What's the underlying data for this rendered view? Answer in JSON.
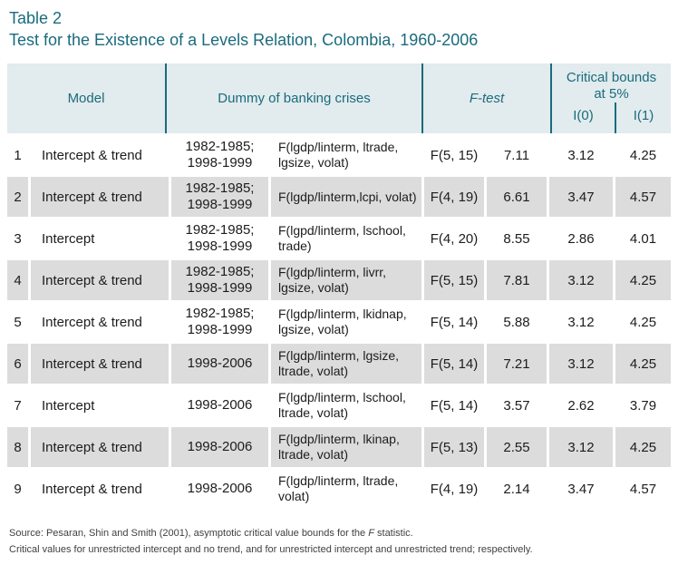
{
  "title": {
    "label": "Table 2",
    "subtitle": "Test for the Existence of a Levels Relation, Colombia, 1960-2006"
  },
  "table": {
    "headers": {
      "model": "Model",
      "dummy": "Dummy of banking crises",
      "ftest": "F-test",
      "critical_bounds": "Critical bounds at 5%",
      "i0": "I(0)",
      "i1": "I(1)"
    },
    "rows": [
      {
        "num": "1",
        "model": "Intercept & trend",
        "period": "1982-1985; 1998-1999",
        "formula": "F(lgdp/linterm, ltrade, lgsize, volat)",
        "fdf": "F(5, 15)",
        "fval": "7.11",
        "i0": "3.12",
        "i1": "4.25"
      },
      {
        "num": "2",
        "model": "Intercept & trend",
        "period": "1982-1985; 1998-1999",
        "formula": "F(lgdp/linterm,lcpi, volat)",
        "fdf": "F(4, 19)",
        "fval": "6.61",
        "i0": "3.47",
        "i1": "4.57"
      },
      {
        "num": "3",
        "model": "Intercept",
        "period": "1982-1985; 1998-1999",
        "formula": "F(lgpd/linterm, lschool, trade)",
        "fdf": "F(4, 20)",
        "fval": "8.55",
        "i0": "2.86",
        "i1": "4.01"
      },
      {
        "num": "4",
        "model": "Intercept & trend",
        "period": "1982-1985; 1998-1999",
        "formula": "F(lgdp/linterm, livrr, lgsize, volat)",
        "fdf": "F(5, 15)",
        "fval": "7.81",
        "i0": "3.12",
        "i1": "4.25"
      },
      {
        "num": "5",
        "model": "Intercept & trend",
        "period": "1982-1985; 1998-1999",
        "formula": "F(lgdp/linterm, lkidnap, lgsize, volat)",
        "fdf": "F(5, 14)",
        "fval": "5.88",
        "i0": "3.12",
        "i1": "4.25"
      },
      {
        "num": "6",
        "model": "Intercept & trend",
        "period": "1998-2006",
        "formula": "F(lgdp/linterm, lgsize, ltrade, volat)",
        "fdf": "F(5, 14)",
        "fval": "7.21",
        "i0": "3.12",
        "i1": "4.25"
      },
      {
        "num": "7",
        "model": "Intercept",
        "period": "1998-2006",
        "formula": "F(lgdp/linterm, lschool, ltrade, volat)",
        "fdf": "F(5, 14)",
        "fval": "3.57",
        "i0": "2.62",
        "i1": "3.79"
      },
      {
        "num": "8",
        "model": "Intercept & trend",
        "period": "1998-2006",
        "formula": "F(lgdp/linterm, lkinap, ltrade, volat)",
        "fdf": "F(5, 13)",
        "fval": "2.55",
        "i0": "3.12",
        "i1": "4.25"
      },
      {
        "num": "9",
        "model": "Intercept & trend",
        "period": "1998-2006",
        "formula": "F(lgdp/linterm, ltrade, volat)",
        "fdf": "F(4, 19)",
        "fval": "2.14",
        "i0": "3.47",
        "i1": "4.57"
      }
    ]
  },
  "footnotes": {
    "source_prefix": "Source: Pesaran, Shin and Smith (2001), asymptotic critical value bounds for the ",
    "source_italic": "F",
    "source_suffix": " statistic.",
    "line2": "Critical values for unrestricted intercept and no trend, and for unrestricted intercept and unrestricted trend; respectively."
  },
  "colors": {
    "accent_teal": "#1a6b7d",
    "header_bg": "#e2ebed",
    "row_alt_bg": "#dcdcdc",
    "body_text": "#1c1c1c",
    "footnote_text": "#3f3f3f"
  }
}
